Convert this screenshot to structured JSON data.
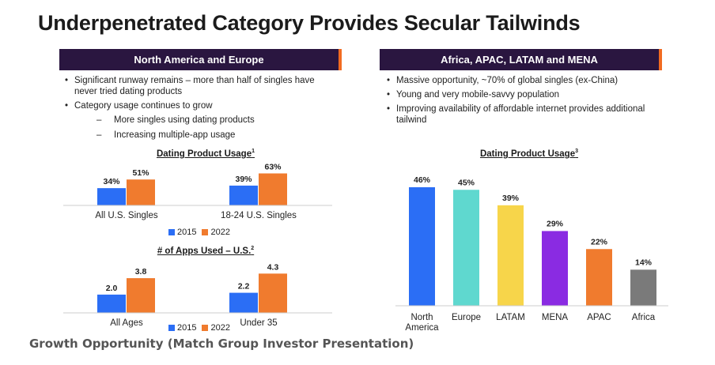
{
  "title": "Underpenetrated Category Provides Secular Tailwinds",
  "left_panel": {
    "header": "North America and Europe",
    "bullets": [
      {
        "text": "Significant runway remains – more than half of singles have never tried dating products",
        "level": 1
      },
      {
        "text": "Category usage continues to grow",
        "level": 1
      },
      {
        "text": "More singles using dating products",
        "level": 2
      },
      {
        "text": "Increasing multiple-app usage",
        "level": 2
      }
    ]
  },
  "right_panel": {
    "header": "Africa, APAC, LATAM and MENA",
    "bullets": [
      {
        "text": "Massive opportunity, ~70% of global singles (ex-China)",
        "level": 1
      },
      {
        "text": "Young and very mobile-savvy population",
        "level": 1
      },
      {
        "text": "Improving availability of affordable internet provides additional tailwind",
        "level": 1
      }
    ]
  },
  "colors": {
    "header_bg": "#2a1640",
    "header_accent": "#f26b21",
    "s2015": "#2b6ef5",
    "s2022": "#f07b2e"
  },
  "legend": [
    {
      "label": "2015",
      "color": "#2b6ef5"
    },
    {
      "label": "2022",
      "color": "#f07b2e"
    }
  ],
  "caption": "Growth Opportunity (Match Group Investor Presentation)",
  "chart_data": [
    {
      "id": "usage_us",
      "type": "bar",
      "title": "Dating Product Usage",
      "title_sup": "1",
      "categories": [
        "All U.S. Singles",
        "18-24 U.S. Singles"
      ],
      "series": [
        {
          "name": "2015",
          "values": [
            34,
            39
          ],
          "labels": [
            "34%",
            "39%"
          ]
        },
        {
          "name": "2022",
          "values": [
            51,
            63
          ],
          "labels": [
            "51%",
            "63%"
          ]
        }
      ],
      "legend_position": "bottom"
    },
    {
      "id": "apps_us",
      "type": "bar",
      "title": "# of Apps Used – U.S.",
      "title_sup": "2",
      "categories": [
        "All Ages",
        "Under 35"
      ],
      "series": [
        {
          "name": "2015",
          "values": [
            2.0,
            2.2
          ],
          "labels": [
            "2.0",
            "2.2"
          ]
        },
        {
          "name": "2022",
          "values": [
            3.8,
            4.3
          ],
          "labels": [
            "3.8",
            "4.3"
          ]
        }
      ],
      "legend_position": "bottom"
    },
    {
      "id": "usage_regions",
      "type": "bar",
      "title": "Dating Product Usage",
      "title_sup": "3",
      "categories": [
        [
          "North",
          "America"
        ],
        [
          "Europe"
        ],
        [
          "LATAM"
        ],
        [
          "MENA"
        ],
        [
          "APAC"
        ],
        [
          "Africa"
        ]
      ],
      "values": [
        46,
        45,
        39,
        29,
        22,
        14
      ],
      "labels": [
        "46%",
        "45%",
        "39%",
        "29%",
        "22%",
        "14%"
      ],
      "bar_colors": [
        "#2b6ef5",
        "#5fd8cf",
        "#f7d54a",
        "#8a2be2",
        "#f07b2e",
        "#7a7a7a"
      ]
    }
  ]
}
